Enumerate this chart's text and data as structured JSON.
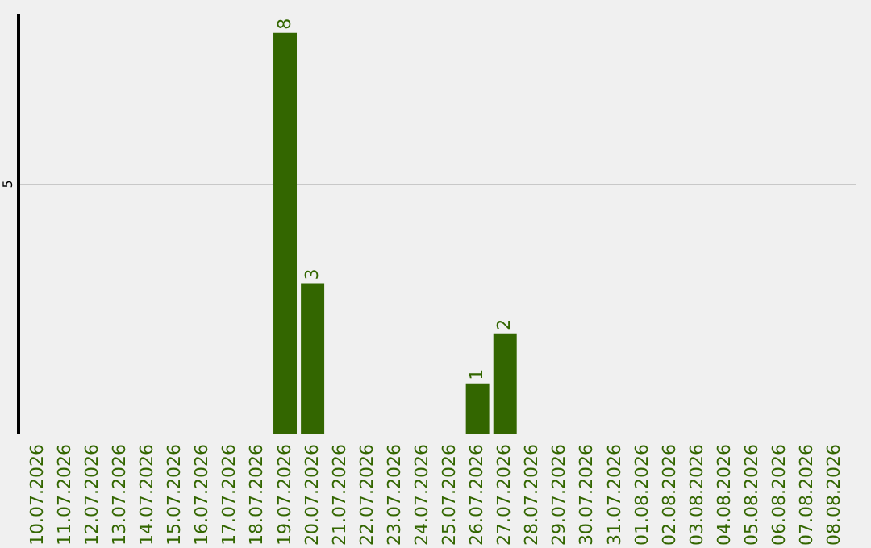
{
  "chart_data": {
    "type": "bar",
    "categories": [
      "10.07.2026",
      "11.07.2026",
      "12.07.2026",
      "13.07.2026",
      "14.07.2026",
      "15.07.2026",
      "16.07.2026",
      "17.07.2026",
      "18.07.2026",
      "19.07.2026",
      "20.07.2026",
      "21.07.2026",
      "22.07.2026",
      "23.07.2026",
      "24.07.2026",
      "25.07.2026",
      "26.07.2026",
      "27.07.2026",
      "28.07.2026",
      "29.07.2026",
      "30.07.2026",
      "31.07.2026",
      "01.08.2026",
      "02.08.2026",
      "03.08.2026",
      "04.08.2026",
      "05.08.2026",
      "06.08.2026",
      "07.08.2026",
      "08.08.2026"
    ],
    "values": [
      0,
      0,
      0,
      0,
      0,
      0,
      0,
      0,
      0,
      8,
      3,
      0,
      0,
      0,
      0,
      0,
      1,
      2,
      0,
      0,
      0,
      0,
      0,
      0,
      0,
      0,
      0,
      0,
      0,
      0
    ],
    "value_labels": [
      null,
      null,
      null,
      null,
      null,
      null,
      null,
      null,
      null,
      "8",
      "3",
      null,
      null,
      null,
      null,
      null,
      "1",
      "2",
      null,
      null,
      null,
      null,
      null,
      null,
      null,
      null,
      null,
      null,
      null,
      null
    ],
    "color": "#336600",
    "ylim": [
      0,
      8.4
    ],
    "yticks": [
      5
    ],
    "grid": "y"
  }
}
